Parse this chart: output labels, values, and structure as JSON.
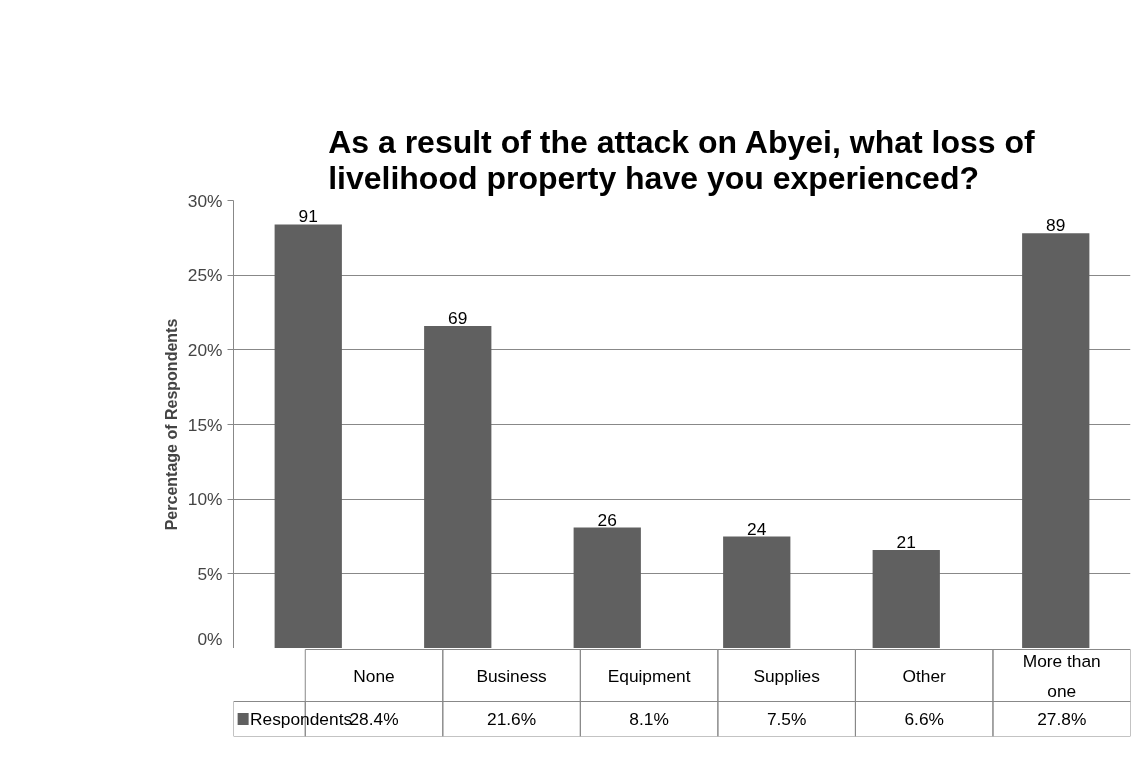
{
  "chart_data": {
    "type": "bar",
    "title": "As a result of the attack on Abyei, what loss of livelihood property have you experienced?",
    "ylabel": "Percentage of Respondents",
    "categories": [
      "None",
      "Business",
      "Equipment",
      "Supplies",
      "Other",
      "More than one"
    ],
    "series": [
      {
        "name": "Respondents",
        "color": "#606060",
        "values": [
          28.4,
          21.6,
          8.1,
          7.5,
          6.6,
          27.8
        ],
        "value_labels": [
          "28.4%",
          "21.6%",
          "8.1%",
          "7.5%",
          "6.6%",
          "27.8%"
        ]
      }
    ],
    "ylim": [
      0,
      30
    ],
    "yticks": [
      {
        "value": 0,
        "label": "0%"
      },
      {
        "value": 5,
        "label": "5%"
      },
      {
        "value": 10,
        "label": "10%"
      },
      {
        "value": 15,
        "label": "15%"
      },
      {
        "value": 20,
        "label": "20%"
      },
      {
        "value": 25,
        "label": "25%"
      },
      {
        "value": 30,
        "label": "30%"
      }
    ],
    "annotations": [
      "91",
      "69",
      "26",
      "24",
      "21",
      "89"
    ],
    "grid": "y",
    "legend": "bottom"
  }
}
